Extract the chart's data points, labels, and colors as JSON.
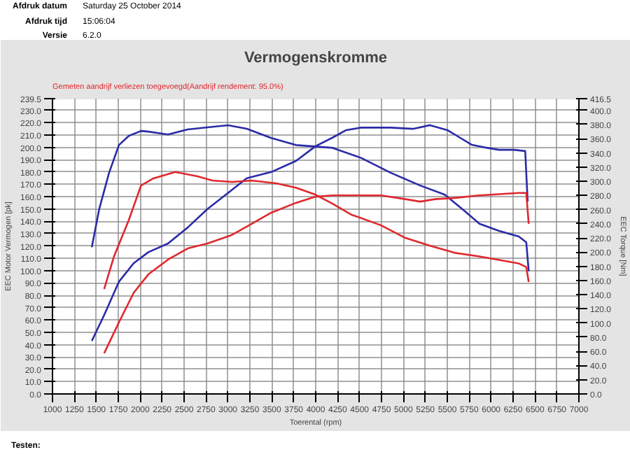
{
  "chart_data": {
    "type": "line",
    "title": "Vermogenskromme",
    "subtitle": "Gemeten aandrijf verliezen toegevoegd(Aandrijf rendement: 95.0%)",
    "annotations": [
      "Afdruk datum",
      "Saturday 25 October 2014",
      "Afdruk tijd",
      "15:06:04",
      "Versie",
      "6.2.0",
      "Testen:"
    ],
    "xlabel": "Toerental (rpm)",
    "ylabel": "EEC Motor Vermogen [pk]",
    "y2label": "EEC Torque [Nm]",
    "xlim": [
      1000,
      7000
    ],
    "xticks": [
      1000,
      1250,
      1500,
      1750,
      2000,
      2250,
      2500,
      2750,
      3000,
      3250,
      3500,
      3750,
      4000,
      4250,
      4500,
      4750,
      5000,
      5250,
      5500,
      5750,
      6000,
      6250,
      6500,
      6750,
      7000
    ],
    "ylim": [
      0,
      239.5
    ],
    "yticks": [
      {
        "value": 0,
        "label": "0.0"
      },
      {
        "value": 10,
        "label": "10.0"
      },
      {
        "value": 20,
        "label": "20.0"
      },
      {
        "value": 30,
        "label": "30.0"
      },
      {
        "value": 40,
        "label": "40.0"
      },
      {
        "value": 50,
        "label": "50.0"
      },
      {
        "value": 60,
        "label": "60.0"
      },
      {
        "value": 70,
        "label": "70.0"
      },
      {
        "value": 80,
        "label": "80.0"
      },
      {
        "value": 90,
        "label": "90.0"
      },
      {
        "value": 100,
        "label": "100.0"
      },
      {
        "value": 110,
        "label": "110.0"
      },
      {
        "value": 120,
        "label": "120.0"
      },
      {
        "value": 130,
        "label": "130.0"
      },
      {
        "value": 140,
        "label": "140.0"
      },
      {
        "value": 150,
        "label": "150.0"
      },
      {
        "value": 160,
        "label": "160.0"
      },
      {
        "value": 170,
        "label": "170.0"
      },
      {
        "value": 180,
        "label": "180.0"
      },
      {
        "value": 190,
        "label": "190.0"
      },
      {
        "value": 200,
        "label": "200.0"
      },
      {
        "value": 210,
        "label": "210.0"
      },
      {
        "value": 220,
        "label": "220.0"
      },
      {
        "value": 230,
        "label": "230.0"
      },
      239.5
    ],
    "y2lim": [
      0,
      416.5
    ],
    "y2ticks": [
      {
        "value": 0,
        "label": "0.0"
      },
      {
        "value": 20,
        "label": "20.0"
      },
      {
        "value": 40,
        "label": "40.0"
      },
      {
        "value": 60,
        "label": "60.0"
      },
      {
        "value": 80,
        "label": "80.0"
      },
      {
        "value": 100,
        "label": "100.0"
      },
      {
        "value": 120,
        "label": "120.0"
      },
      {
        "value": 140,
        "label": "140.0"
      },
      {
        "value": 160,
        "label": "160.0"
      },
      {
        "value": 180,
        "label": "180.0"
      },
      {
        "value": 200,
        "label": "200.0"
      },
      {
        "value": 220,
        "label": "220.0"
      },
      {
        "value": 240,
        "label": "240.0"
      },
      {
        "value": 260,
        "label": "260.0"
      },
      {
        "value": 280,
        "label": "280.0"
      },
      {
        "value": 300,
        "label": "300.0"
      },
      {
        "value": 320,
        "label": "320.0"
      },
      {
        "value": 340,
        "label": "340.0"
      },
      {
        "value": 360,
        "label": "360.0"
      },
      {
        "value": 380,
        "label": "380.0"
      },
      {
        "value": 400,
        "label": "400.0"
      },
      416.5
    ],
    "grid": true,
    "line_style": "solid",
    "marker": "none",
    "series": [
      {
        "color": "#2b2ba8",
        "axis": "y2",
        "x": [
          1448,
          1533,
          1645,
          1757,
          1869,
          2009,
          2093,
          2317,
          2541,
          2766,
          3001,
          3214,
          3494,
          3775,
          3999,
          4195,
          4517,
          4854,
          5191,
          5472,
          5697,
          5866,
          6090,
          6315,
          6400,
          6428
        ],
        "values": [
          207,
          261,
          312,
          351,
          364,
          371,
          370,
          366,
          373,
          376,
          379,
          374,
          361,
          351,
          349,
          347,
          333,
          312,
          294,
          281,
          258,
          240,
          230,
          222,
          214,
          173
        ]
      },
      {
        "color": "#2b2ba8",
        "x": [
          1448,
          1589,
          1757,
          1925,
          2093,
          2317,
          2541,
          2766,
          3001,
          3214,
          3494,
          3775,
          3999,
          4195,
          4348,
          4517,
          4854,
          5107,
          5304,
          5500,
          5641,
          5781,
          5922,
          6090,
          6259,
          6388,
          6416
        ],
        "values": [
          43,
          64,
          91,
          106,
          115,
          122,
          135,
          150,
          163,
          175,
          180,
          189,
          201,
          208,
          214,
          216,
          216,
          215,
          218,
          214,
          208,
          202,
          200,
          198,
          198,
          197,
          156
        ]
      },
      {
        "color": "#e0282e",
        "axis": "y2",
        "x": [
          1589,
          1701,
          1869,
          2009,
          2149,
          2401,
          2653,
          2822,
          3046,
          3270,
          3550,
          3775,
          3999,
          4195,
          4404,
          4742,
          5023,
          5304,
          5585,
          5866,
          6090,
          6315,
          6400,
          6428
        ],
        "values": [
          148,
          194,
          245,
          294,
          304,
          313,
          307,
          301,
          299,
          301,
          297,
          291,
          281,
          268,
          253,
          238,
          220,
          209,
          199,
          194,
          189,
          184,
          179,
          158
        ]
      },
      {
        "color": "#e0282e",
        "x": [
          1589,
          1757,
          1925,
          2093,
          2317,
          2541,
          2766,
          3046,
          3270,
          3494,
          3775,
          3999,
          4195,
          4517,
          4742,
          5023,
          5191,
          5360,
          5585,
          5866,
          6090,
          6315,
          6400,
          6428
        ],
        "values": [
          33,
          58,
          82,
          97,
          109,
          118,
          122,
          129,
          138,
          147,
          155,
          160,
          161,
          161,
          161,
          158,
          156,
          158,
          159,
          161,
          162,
          163,
          163,
          138
        ]
      }
    ]
  }
}
